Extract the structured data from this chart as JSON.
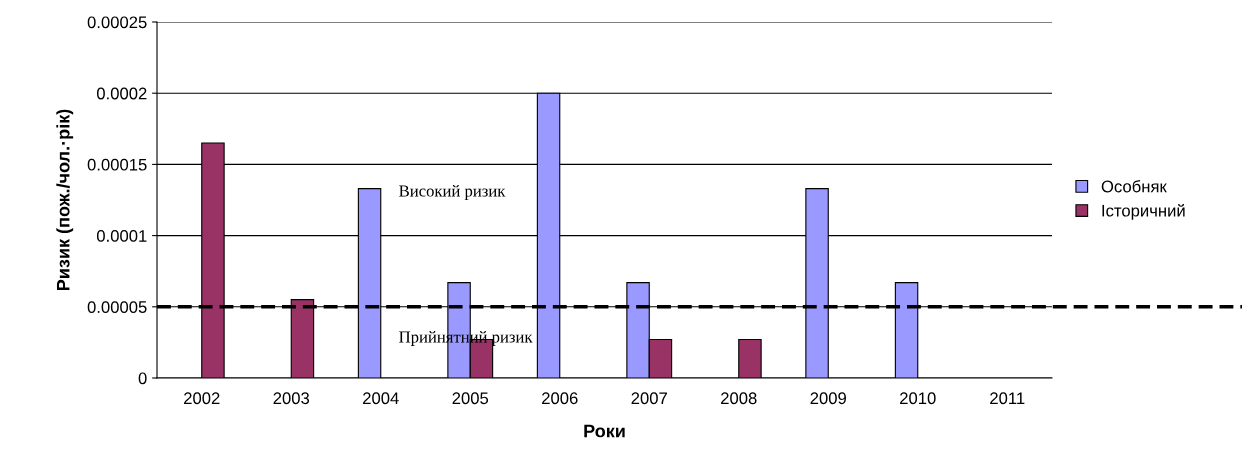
{
  "chart_data": {
    "type": "bar",
    "xlabel": "Роки",
    "ylabel": "Ризик (пож./чол.·рік)",
    "categories": [
      "2002",
      "2003",
      "2004",
      "2005",
      "2006",
      "2007",
      "2008",
      "2009",
      "2010",
      "2011"
    ],
    "series": [
      {
        "name": "Особняк",
        "color": "#9999ff",
        "values": [
          null,
          null,
          0.000133,
          6.7e-05,
          0.0002,
          6.7e-05,
          null,
          0.000133,
          6.7e-05,
          null
        ]
      },
      {
        "name": "Історичний",
        "color": "#993366",
        "values": [
          0.000165,
          5.5e-05,
          null,
          2.7e-05,
          null,
          2.7e-05,
          2.7e-05,
          null,
          null,
          null
        ]
      }
    ],
    "ylim": [
      0,
      0.00025
    ],
    "yticks": [
      0,
      {
        "value": 5e-05,
        "label": "0.00005"
      },
      {
        "value": 0.0001,
        "label": "0.0001"
      },
      {
        "value": 0.00015,
        "label": "0.00015"
      },
      {
        "value": 0.0002,
        "label": "0.0002"
      },
      {
        "value": 0.00025,
        "label": "0.00025"
      }
    ],
    "grid": "y",
    "legend": "right",
    "ref_lines": [
      {
        "axis": "y",
        "value": 5e-05,
        "color": "#000000",
        "line_style": "dashed"
      }
    ],
    "annotations": [
      "Високий ризик",
      "Прийнятний ризик"
    ]
  }
}
